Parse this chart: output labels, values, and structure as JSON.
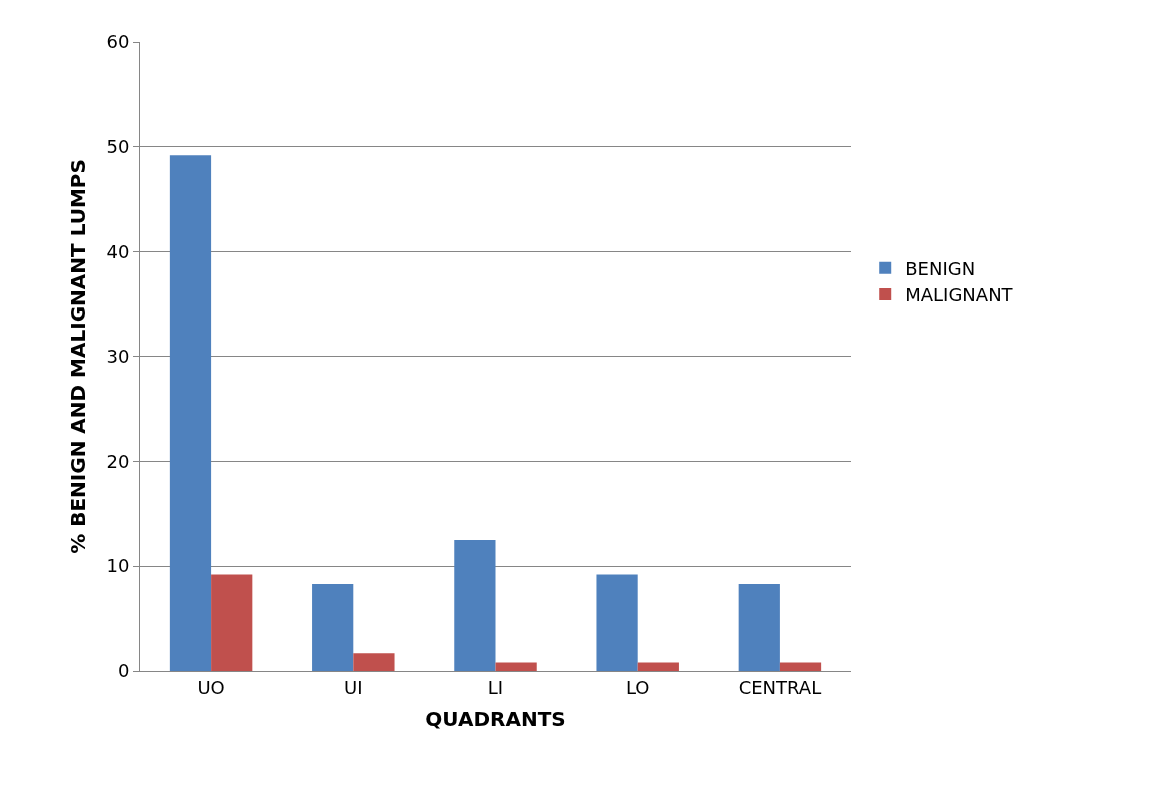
{
  "chart_data": {
    "type": "bar",
    "xlabel": "QUADRANTS",
    "ylabel": "% BENIGN AND MALIGNANT LUMPS",
    "categories": [
      "UO",
      "UI",
      "LI",
      "LO",
      "CENTRAL"
    ],
    "series": [
      {
        "name": "BENIGN",
        "color": "#4f81bd",
        "values": [
          49.2,
          8.3,
          12.5,
          9.2,
          8.3
        ]
      },
      {
        "name": "MALIGNANT",
        "color": "#c0504d",
        "values": [
          9.2,
          1.7,
          0.8,
          0.8,
          0.8
        ]
      }
    ],
    "ylim": [
      0,
      60
    ],
    "yticks": [
      0,
      10,
      20,
      30,
      40,
      50,
      60
    ],
    "grid": "y",
    "legend": "right"
  }
}
